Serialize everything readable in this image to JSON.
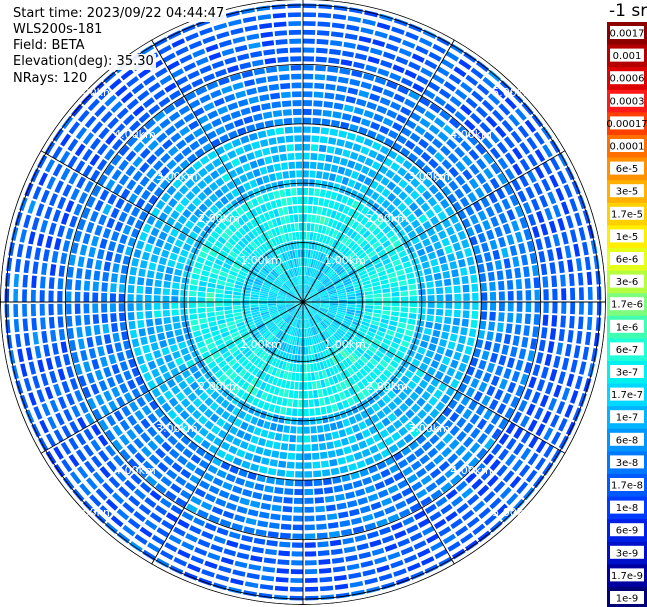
{
  "info": {
    "start_time": "Start time: 2023/09/22 04:44:47",
    "device": "WLS200s-181",
    "field": "Field: BETA",
    "elevation": "Elevation(deg): 35.30",
    "nrays": "NRays: 120"
  },
  "chart_data": {
    "type": "heatmap",
    "projection": "polar",
    "title": "",
    "field": "BETA",
    "n_rays": 120,
    "elevation_deg": 35.3,
    "range_rings_km": [
      1,
      2,
      3,
      4,
      5
    ],
    "ring_labels": [
      "1.00km",
      "2.00km",
      "3.00km",
      "4.00km",
      "5.00km"
    ],
    "max_range_km": 5.1,
    "spoke_angles_deg": [
      0,
      30,
      60,
      90,
      120,
      150,
      180,
      210,
      240,
      270,
      300,
      330
    ],
    "grid": true,
    "radial_bands_km": [
      {
        "from": 0.0,
        "to": 1.0,
        "dominant_level": "1.7e-7"
      },
      {
        "from": 1.0,
        "to": 2.0,
        "dominant_level": "3e-7"
      },
      {
        "from": 2.0,
        "to": 3.0,
        "dominant_level": "1e-7"
      },
      {
        "from": 3.0,
        "to": 4.0,
        "dominant_level": "3e-8"
      },
      {
        "from": 4.0,
        "to": 5.1,
        "dominant_level": "1.7e-8"
      }
    ],
    "colorbar": {
      "title": "-1 sr",
      "labels": [
        "0.0017",
        "0.001",
        "0.0006",
        "0.0003",
        "0.00017",
        "0.0001",
        "6e-5",
        "3e-5",
        "1.7e-5",
        "1e-5",
        "6e-6",
        "3e-6",
        "1.7e-6",
        "1e-6",
        "6e-7",
        "3e-7",
        "1.7e-7",
        "1e-7",
        "6e-8",
        "3e-8",
        "1.7e-8",
        "1e-8",
        "6e-9",
        "3e-9",
        "1.7e-9",
        "1e-9"
      ],
      "colors": [
        "#8c0000",
        "#b40000",
        "#dc0000",
        "#ff1a1a",
        "#ff4000",
        "#ff7000",
        "#ff9000",
        "#ffb000",
        "#ffd000",
        "#ffee00",
        "#e6ff1a",
        "#b4ff40",
        "#7cff7c",
        "#40ffb0",
        "#20ffd8",
        "#00f0f0",
        "#00d8ff",
        "#00b4ff",
        "#0096ff",
        "#0078ff",
        "#005aff",
        "#003cff",
        "#0020e6",
        "#0010c8",
        "#0000a0",
        "#000078"
      ]
    }
  }
}
